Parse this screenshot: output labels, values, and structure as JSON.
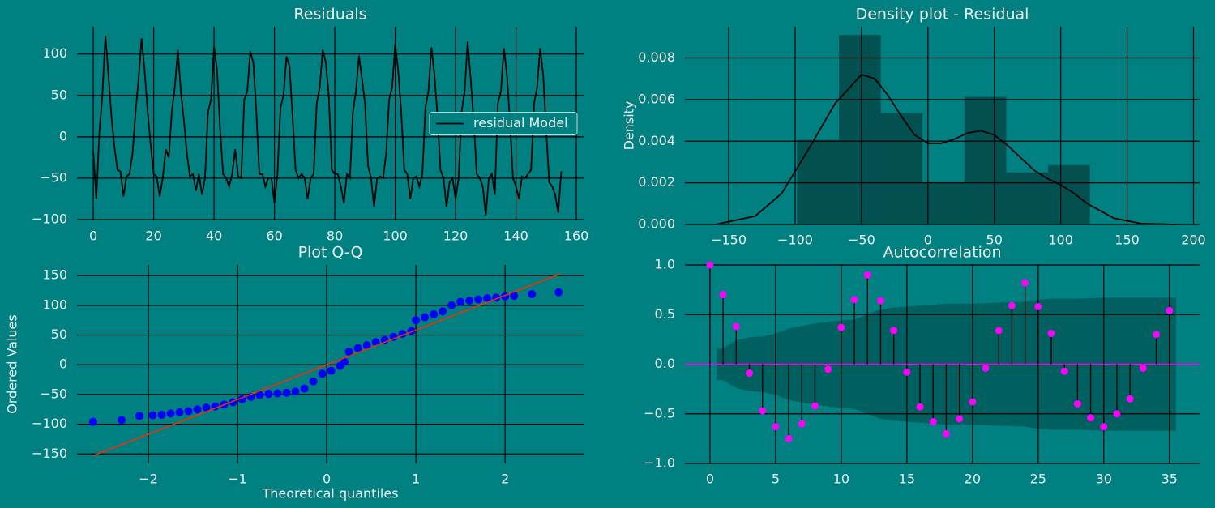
{
  "chart_data": [
    {
      "type": "line",
      "title": "Residuals",
      "grid": true,
      "legend": "center right",
      "x": [
        0,
        1,
        2,
        3,
        4,
        5,
        6,
        7,
        8,
        9,
        10,
        11,
        12,
        13,
        14,
        15,
        16,
        17,
        18,
        19,
        20,
        21,
        22,
        23,
        24,
        25,
        26,
        27,
        28,
        29,
        30,
        31,
        32,
        33,
        34,
        35,
        36,
        37,
        38,
        39,
        40,
        41,
        42,
        43,
        44,
        45,
        46,
        47,
        48,
        49,
        50,
        51,
        52,
        53,
        54,
        55,
        56,
        57,
        58,
        59,
        60,
        61,
        62,
        63,
        64,
        65,
        66,
        67,
        68,
        69,
        70,
        71,
        72,
        73,
        74,
        75,
        76,
        77,
        78,
        79,
        80,
        81,
        82,
        83,
        84,
        85,
        86,
        87,
        88,
        89,
        90,
        91,
        92,
        93,
        94,
        95,
        96,
        97,
        98,
        99,
        100,
        101,
        102,
        103,
        104,
        105,
        106,
        107,
        108,
        109,
        110,
        111,
        112,
        113,
        114,
        115,
        116,
        117,
        118,
        119,
        120,
        121,
        122,
        123,
        124,
        125,
        126,
        127,
        128,
        129,
        130,
        131,
        132,
        133,
        134,
        135,
        136,
        137,
        138,
        139,
        140,
        141,
        142,
        143,
        144,
        145,
        146,
        147,
        148,
        149,
        150,
        151,
        152,
        153,
        154,
        155
      ],
      "series": [
        {
          "name": "residual Model",
          "color": "#000000",
          "values": [
            -18,
            -75,
            5,
            50,
            122,
            75,
            25,
            -12,
            -40,
            -42,
            -72,
            -48,
            -45,
            -20,
            30,
            70,
            119,
            80,
            30,
            -10,
            -45,
            -48,
            -72,
            -50,
            -15,
            -25,
            30,
            60,
            105,
            55,
            20,
            -20,
            -48,
            -45,
            -65,
            -45,
            -70,
            -50,
            30,
            45,
            109,
            80,
            10,
            -45,
            -50,
            -60,
            -45,
            -15,
            -48,
            -50,
            45,
            55,
            103,
            90,
            30,
            -45,
            -45,
            -60,
            -50,
            -50,
            -80,
            -45,
            35,
            50,
            97,
            85,
            25,
            -40,
            -50,
            -45,
            -50,
            -75,
            -50,
            -45,
            40,
            60,
            105,
            90,
            50,
            -40,
            -45,
            -45,
            -60,
            -80,
            -45,
            -50,
            30,
            55,
            98,
            70,
            40,
            -35,
            -50,
            -85,
            -50,
            -48,
            -50,
            -20,
            45,
            60,
            112,
            80,
            30,
            -40,
            -45,
            -75,
            -50,
            -48,
            -60,
            -45,
            35,
            55,
            108,
            75,
            25,
            -40,
            -50,
            -85,
            -55,
            -50,
            -75,
            -50,
            30,
            55,
            115,
            70,
            20,
            -45,
            -50,
            -60,
            -95,
            -50,
            -45,
            -70,
            40,
            55,
            107,
            75,
            20,
            -50,
            -60,
            -75,
            -48,
            -50,
            -45,
            -40,
            40,
            60,
            107,
            75,
            10,
            -55,
            -60,
            -70,
            -92,
            -42
          ]
        }
      ],
      "xlim": [
        -5.4,
        162.4
      ],
      "ylim": [
        -101,
        133
      ],
      "xticks": [
        0,
        20,
        40,
        60,
        80,
        100,
        120,
        140,
        160
      ],
      "yticks": [
        {
          "value": -100,
          "label": "−100"
        },
        {
          "value": -50,
          "label": "−50"
        },
        0,
        50,
        100
      ]
    },
    {
      "type": "histogram",
      "title": "Density plot - Residual",
      "ylabel": "Density",
      "grid": true,
      "color": "#024848",
      "bins": [
        -98.5,
        -67,
        -35.5,
        -4,
        27.5,
        59,
        90.5,
        122
      ],
      "values": [
        0.00406,
        0.0091,
        0.00535,
        0.00203,
        0.00613,
        0.0025,
        0.00285
      ],
      "kde": {
        "color": "#000000",
        "x": [
          -160,
          -130,
          -110,
          -90,
          -70,
          -50,
          -40,
          -30,
          -20,
          -10,
          0,
          10,
          20,
          30,
          40,
          50,
          60,
          70,
          80,
          90,
          100,
          110,
          120,
          140,
          160,
          187
        ],
        "y": [
          0,
          0.0004,
          0.0015,
          0.0036,
          0.0058,
          0.0072,
          0.007,
          0.0062,
          0.0052,
          0.0043,
          0.0039,
          0.0039,
          0.0041,
          0.0044,
          0.0045,
          0.0043,
          0.0038,
          0.0032,
          0.0026,
          0.0022,
          0.0019,
          0.0015,
          0.001,
          0.0003,
          5e-05,
          0
        ]
      },
      "xlim": [
        -183,
        204.6
      ],
      "ylim": [
        0,
        0.0095
      ],
      "xticks": [
        {
          "value": -150,
          "label": "−150"
        },
        {
          "value": -100,
          "label": "−100"
        },
        {
          "value": -50,
          "label": "−50"
        },
        0,
        50,
        100,
        150,
        200
      ],
      "yticks": [
        {
          "value": 0,
          "label": "0.000"
        },
        {
          "value": 0.002,
          "label": "0.002"
        },
        {
          "value": 0.004,
          "label": "0.004"
        },
        {
          "value": 0.006,
          "label": "0.006"
        },
        {
          "value": 0.008,
          "label": "0.008"
        }
      ]
    },
    {
      "type": "scatter",
      "title": "Plot Q-Q",
      "xlabel": "Theoretical quantiles",
      "ylabel": "Ordered Values",
      "grid": true,
      "color": "#0000ff",
      "x": [
        -2.62,
        -2.3,
        -2.1,
        -1.95,
        -1.85,
        -1.75,
        -1.65,
        -1.55,
        -1.45,
        -1.35,
        -1.25,
        -1.15,
        -1.05,
        -0.95,
        -0.85,
        -0.75,
        -0.65,
        -0.55,
        -0.45,
        -0.35,
        -0.25,
        -0.15,
        -0.05,
        0.05,
        0.15,
        0.2,
        0.25,
        0.35,
        0.45,
        0.55,
        0.65,
        0.75,
        0.85,
        0.95,
        1.0,
        1.1,
        1.2,
        1.3,
        1.4,
        1.5,
        1.6,
        1.7,
        1.8,
        1.9,
        2.0,
        2.1,
        2.3,
        2.6
      ],
      "values": [
        -96,
        -93,
        -86,
        -85,
        -84,
        -82,
        -80,
        -78,
        -75,
        -72,
        -70,
        -67,
        -63,
        -58,
        -54,
        -51,
        -49,
        -48,
        -47,
        -45,
        -40,
        -28,
        -15,
        -10,
        -2,
        5,
        22,
        28,
        33,
        38,
        42,
        47,
        52,
        57,
        75,
        80,
        85,
        90,
        100,
        106,
        108,
        110,
        112,
        113,
        115,
        116,
        119,
        122
      ],
      "fit": {
        "color": "#ff2a00",
        "x": [
          -2.62,
          2.62
        ],
        "y": [
          -153,
          153
        ]
      },
      "xlim": [
        -2.8,
        2.88
      ],
      "ylim": [
        -166,
        168
      ],
      "xticks": [
        {
          "value": -2,
          "label": "−2"
        },
        {
          "value": -1,
          "label": "−1"
        },
        0,
        1,
        2
      ],
      "yticks": [
        {
          "value": -150,
          "label": "−150"
        },
        {
          "value": -100,
          "label": "−100"
        },
        {
          "value": -50,
          "label": "−50"
        },
        0,
        50,
        100,
        150
      ]
    },
    {
      "type": "stem",
      "title": "Autocorrelation",
      "grid": true,
      "color": "#ff00ff",
      "x": [
        0,
        1,
        2,
        3,
        4,
        5,
        6,
        7,
        8,
        9,
        10,
        11,
        12,
        13,
        14,
        15,
        16,
        17,
        18,
        19,
        20,
        21,
        22,
        23,
        24,
        25,
        26,
        27,
        28,
        29,
        30,
        31,
        32,
        33,
        34,
        35
      ],
      "values": [
        1.0,
        0.7,
        0.38,
        -0.09,
        -0.47,
        -0.63,
        -0.75,
        -0.6,
        -0.42,
        -0.05,
        0.37,
        0.65,
        0.9,
        0.64,
        0.34,
        -0.08,
        -0.43,
        -0.58,
        -0.7,
        -0.55,
        -0.38,
        -0.04,
        0.34,
        0.59,
        0.82,
        0.58,
        0.31,
        -0.07,
        -0.4,
        -0.54,
        -0.63,
        -0.5,
        -0.35,
        -0.04,
        0.3,
        0.54
      ],
      "band": {
        "color": "#005f5f",
        "x": [
          0.5,
          1,
          2,
          3,
          4,
          5,
          6,
          8,
          10,
          11,
          12,
          13,
          14,
          16,
          18,
          20,
          22,
          24,
          25,
          26,
          28,
          30,
          32,
          35.5
        ],
        "upper": [
          0.16,
          0.16,
          0.24,
          0.27,
          0.28,
          0.31,
          0.36,
          0.41,
          0.44,
          0.45,
          0.5,
          0.55,
          0.57,
          0.59,
          0.61,
          0.61,
          0.62,
          0.63,
          0.65,
          0.66,
          0.66,
          0.67,
          0.67,
          0.67
        ],
        "lower": [
          -0.16,
          -0.16,
          -0.24,
          -0.27,
          -0.28,
          -0.31,
          -0.36,
          -0.41,
          -0.44,
          -0.45,
          -0.5,
          -0.55,
          -0.57,
          -0.59,
          -0.61,
          -0.61,
          -0.62,
          -0.63,
          -0.65,
          -0.66,
          -0.66,
          -0.67,
          -0.67,
          -0.67
        ]
      },
      "xlim": [
        -1.91,
        37.3
      ],
      "ylim": [
        -1,
        1
      ],
      "xticks": [
        0,
        5,
        10,
        15,
        20,
        25,
        30,
        35
      ],
      "yticks": [
        {
          "value": -1,
          "label": "−1.0"
        },
        {
          "value": -0.5,
          "label": "−0.5"
        },
        {
          "value": 0,
          "label": "0.0"
        },
        {
          "value": 0.5,
          "label": "0.5"
        },
        {
          "value": 1,
          "label": "1.0"
        }
      ]
    }
  ]
}
